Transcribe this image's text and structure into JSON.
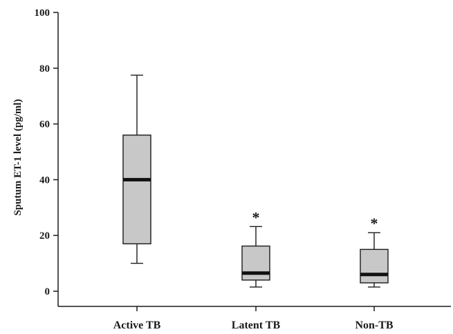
{
  "chart_data": {
    "type": "box",
    "title": "",
    "xlabel": "",
    "ylabel": "Sputum ET-1 level (pg/ml)",
    "ylim": [
      0,
      100
    ],
    "yticks": [
      "0",
      "20",
      "40",
      "60",
      "80",
      "100"
    ],
    "categories": [
      "Active TB",
      "Latent TB",
      "Non-TB"
    ],
    "boxes": [
      {
        "category": "Active TB",
        "min": 10,
        "q1": 17,
        "median": 40,
        "q3": 56,
        "max": 77.5,
        "annotation": ""
      },
      {
        "category": "Latent TB",
        "min": 1.5,
        "q1": 4,
        "median": 6.5,
        "q3": 16.2,
        "max": 23.2,
        "annotation": "*"
      },
      {
        "category": "Non-TB",
        "min": 1.5,
        "q1": 3,
        "median": 6,
        "q3": 15,
        "max": 21,
        "annotation": "*"
      }
    ],
    "box_fill": "#c8c8c8",
    "line_color": "#1a1a1a",
    "grid": false,
    "legend": "none"
  }
}
